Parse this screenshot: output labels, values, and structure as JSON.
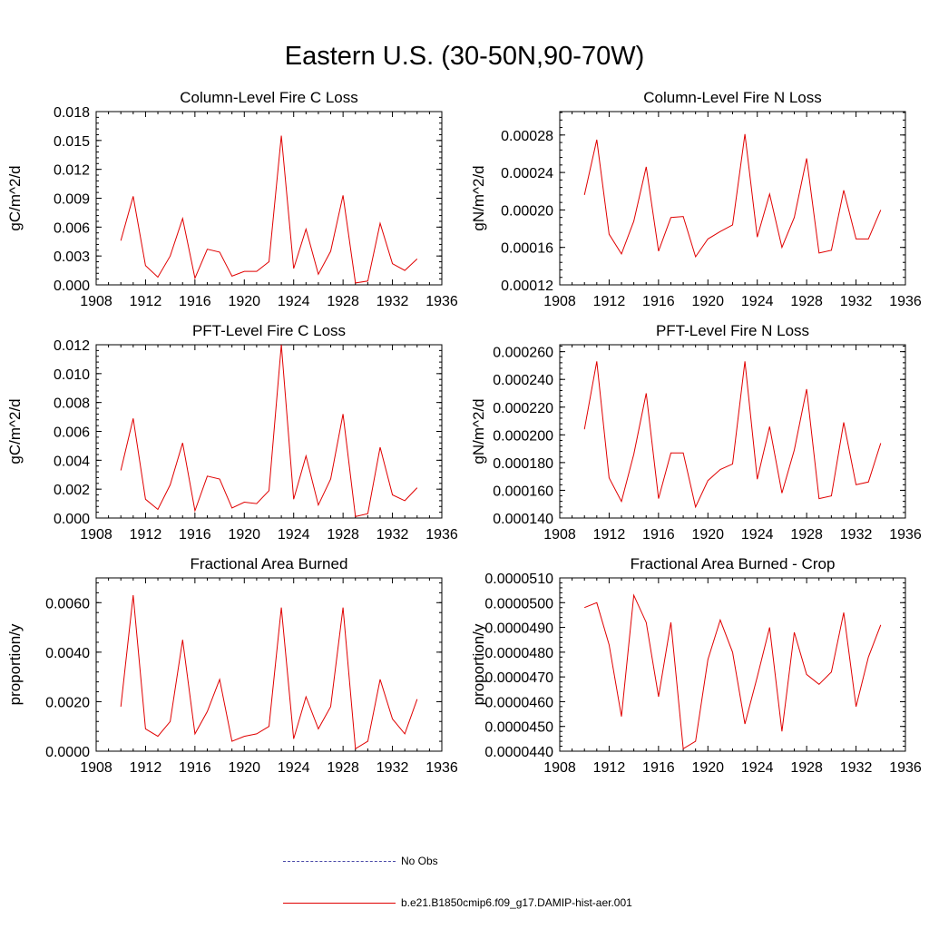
{
  "figure": {
    "title": "Eastern U.S. (30-50N,90-70W)"
  },
  "legend": {
    "obs_label": "No Obs",
    "model_label": "b.e21.B1850cmip6.f09_g17.DAMIP-hist-aer.001",
    "obs_color": "#4a4aa8",
    "model_color": "#e00000"
  },
  "chart_data": [
    {
      "type": "line",
      "title": "Column-Level Fire C Loss",
      "ylabel": "gC/m^2/d",
      "xlim": [
        1908,
        1936
      ],
      "xticks": [
        "1908",
        "1912",
        "1916",
        "1920",
        "1924",
        "1928",
        "1932",
        "1936"
      ],
      "ylim": [
        0,
        0.018
      ],
      "yticks": [
        "0.000",
        "0.003",
        "0.006",
        "0.009",
        "0.012",
        "0.015",
        "0.018"
      ],
      "x": [
        1910,
        1911,
        1912,
        1913,
        1914,
        1915,
        1916,
        1917,
        1918,
        1919,
        1920,
        1921,
        1922,
        1923,
        1924,
        1925,
        1926,
        1927,
        1928,
        1929,
        1930,
        1931,
        1932,
        1933,
        1934
      ],
      "series": [
        {
          "values": [
            0.0046,
            0.0092,
            0.002,
            0.0008,
            0.003,
            0.0069,
            0.0007,
            0.0037,
            0.0034,
            0.0009,
            0.0014,
            0.0014,
            0.0024,
            0.0155,
            0.0017,
            0.0058,
            0.0011,
            0.0035,
            0.0093,
            0.0002,
            0.0004,
            0.0064,
            0.0022,
            0.0015,
            0.0027
          ]
        }
      ]
    },
    {
      "type": "line",
      "title": "Column-Level Fire N Loss",
      "ylabel": "gN/m^2/d",
      "xlim": [
        1908,
        1936
      ],
      "xticks": [
        "1908",
        "1912",
        "1916",
        "1920",
        "1924",
        "1928",
        "1932",
        "1936"
      ],
      "ylim": [
        0.00012,
        0.000305
      ],
      "yticks": [
        "0.00012",
        "0.00016",
        "0.00020",
        "0.00024",
        "0.00028"
      ],
      "x": [
        1910,
        1911,
        1912,
        1913,
        1914,
        1915,
        1916,
        1917,
        1918,
        1919,
        1920,
        1921,
        1922,
        1923,
        1924,
        1925,
        1926,
        1927,
        1928,
        1929,
        1930,
        1931,
        1932,
        1933,
        1934
      ],
      "series": [
        {
          "values": [
            0.000216,
            0.000275,
            0.000174,
            0.000153,
            0.000188,
            0.000246,
            0.000156,
            0.000192,
            0.000193,
            0.00015,
            0.000169,
            0.000177,
            0.000184,
            0.000281,
            0.000171,
            0.000217,
            0.00016,
            0.000192,
            0.000255,
            0.000154,
            0.000157,
            0.000221,
            0.000169,
            0.000169,
            0.0002
          ]
        }
      ]
    },
    {
      "type": "line",
      "title": "PFT-Level Fire C Loss",
      "ylabel": "gC/m^2/d",
      "xlim": [
        1908,
        1936
      ],
      "xticks": [
        "1908",
        "1912",
        "1916",
        "1920",
        "1924",
        "1928",
        "1932",
        "1936"
      ],
      "ylim": [
        0,
        0.012
      ],
      "yticks": [
        "0.000",
        "0.002",
        "0.004",
        "0.006",
        "0.008",
        "0.010",
        "0.012"
      ],
      "x": [
        1910,
        1911,
        1912,
        1913,
        1914,
        1915,
        1916,
        1917,
        1918,
        1919,
        1920,
        1921,
        1922,
        1923,
        1924,
        1925,
        1926,
        1927,
        1928,
        1929,
        1930,
        1931,
        1932,
        1933,
        1934
      ],
      "series": [
        {
          "values": [
            0.0033,
            0.0069,
            0.0013,
            0.0006,
            0.0023,
            0.0052,
            0.0005,
            0.0029,
            0.0027,
            0.0007,
            0.0011,
            0.001,
            0.0019,
            0.012,
            0.0013,
            0.0043,
            0.0009,
            0.0027,
            0.0072,
            0.0001,
            0.0003,
            0.0049,
            0.0016,
            0.0012,
            0.0021
          ]
        }
      ]
    },
    {
      "type": "line",
      "title": "PFT-Level Fire N Loss",
      "ylabel": "gN/m^2/d",
      "xlim": [
        1908,
        1936
      ],
      "xticks": [
        "1908",
        "1912",
        "1916",
        "1920",
        "1924",
        "1928",
        "1932",
        "1936"
      ],
      "ylim": [
        0.00014,
        0.000265
      ],
      "yticks": [
        "0.000140",
        "0.000160",
        "0.000180",
        "0.000200",
        "0.000220",
        "0.000240",
        "0.000260"
      ],
      "x": [
        1910,
        1911,
        1912,
        1913,
        1914,
        1915,
        1916,
        1917,
        1918,
        1919,
        1920,
        1921,
        1922,
        1923,
        1924,
        1925,
        1926,
        1927,
        1928,
        1929,
        1930,
        1931,
        1932,
        1933,
        1934
      ],
      "series": [
        {
          "values": [
            0.000204,
            0.000253,
            0.000169,
            0.000152,
            0.000186,
            0.00023,
            0.000154,
            0.000187,
            0.000187,
            0.000148,
            0.000167,
            0.000175,
            0.000179,
            0.000253,
            0.000168,
            0.000206,
            0.000158,
            0.000189,
            0.000233,
            0.000154,
            0.000156,
            0.000209,
            0.000164,
            0.000166,
            0.000194
          ]
        }
      ]
    },
    {
      "type": "line",
      "title": "Fractional Area Burned",
      "ylabel": "proportion/y",
      "xlim": [
        1908,
        1936
      ],
      "xticks": [
        "1908",
        "1912",
        "1916",
        "1920",
        "1924",
        "1928",
        "1932",
        "1936"
      ],
      "ylim": [
        0,
        0.007
      ],
      "yticks": [
        "0.0000",
        "0.0020",
        "0.0040",
        "0.0060"
      ],
      "x": [
        1910,
        1911,
        1912,
        1913,
        1914,
        1915,
        1916,
        1917,
        1918,
        1919,
        1920,
        1921,
        1922,
        1923,
        1924,
        1925,
        1926,
        1927,
        1928,
        1929,
        1930,
        1931,
        1932,
        1933,
        1934
      ],
      "series": [
        {
          "values": [
            0.0018,
            0.0063,
            0.0009,
            0.0006,
            0.0012,
            0.0045,
            0.0007,
            0.0016,
            0.0029,
            0.0004,
            0.0006,
            0.0007,
            0.001,
            0.0058,
            0.0005,
            0.0022,
            0.0009,
            0.0018,
            0.0058,
            0.0001,
            0.0004,
            0.0029,
            0.0013,
            0.0007,
            0.0021
          ]
        }
      ]
    },
    {
      "type": "line",
      "title": "Fractional Area Burned - Crop",
      "ylabel": "proportion/y",
      "xlim": [
        1908,
        1936
      ],
      "xticks": [
        "1908",
        "1912",
        "1916",
        "1920",
        "1924",
        "1928",
        "1932",
        "1936"
      ],
      "ylim": [
        4.4e-05,
        5.1e-05
      ],
      "yticks": [
        "0.0000440",
        "0.0000450",
        "0.0000460",
        "0.0000470",
        "0.0000480",
        "0.0000490",
        "0.0000500",
        "0.0000510"
      ],
      "x": [
        1910,
        1911,
        1912,
        1913,
        1914,
        1915,
        1916,
        1917,
        1918,
        1919,
        1920,
        1921,
        1922,
        1923,
        1924,
        1925,
        1926,
        1927,
        1928,
        1929,
        1930,
        1931,
        1932,
        1933,
        1934
      ],
      "series": [
        {
          "values": [
            4.98e-05,
            5e-05,
            4.83e-05,
            4.54e-05,
            5.03e-05,
            4.92e-05,
            4.62e-05,
            4.92e-05,
            4.41e-05,
            4.44e-05,
            4.77e-05,
            4.93e-05,
            4.8e-05,
            4.51e-05,
            4.7e-05,
            4.9e-05,
            4.48e-05,
            4.88e-05,
            4.71e-05,
            4.67e-05,
            4.72e-05,
            4.96e-05,
            4.58e-05,
            4.78e-05,
            4.91e-05
          ]
        }
      ]
    }
  ]
}
